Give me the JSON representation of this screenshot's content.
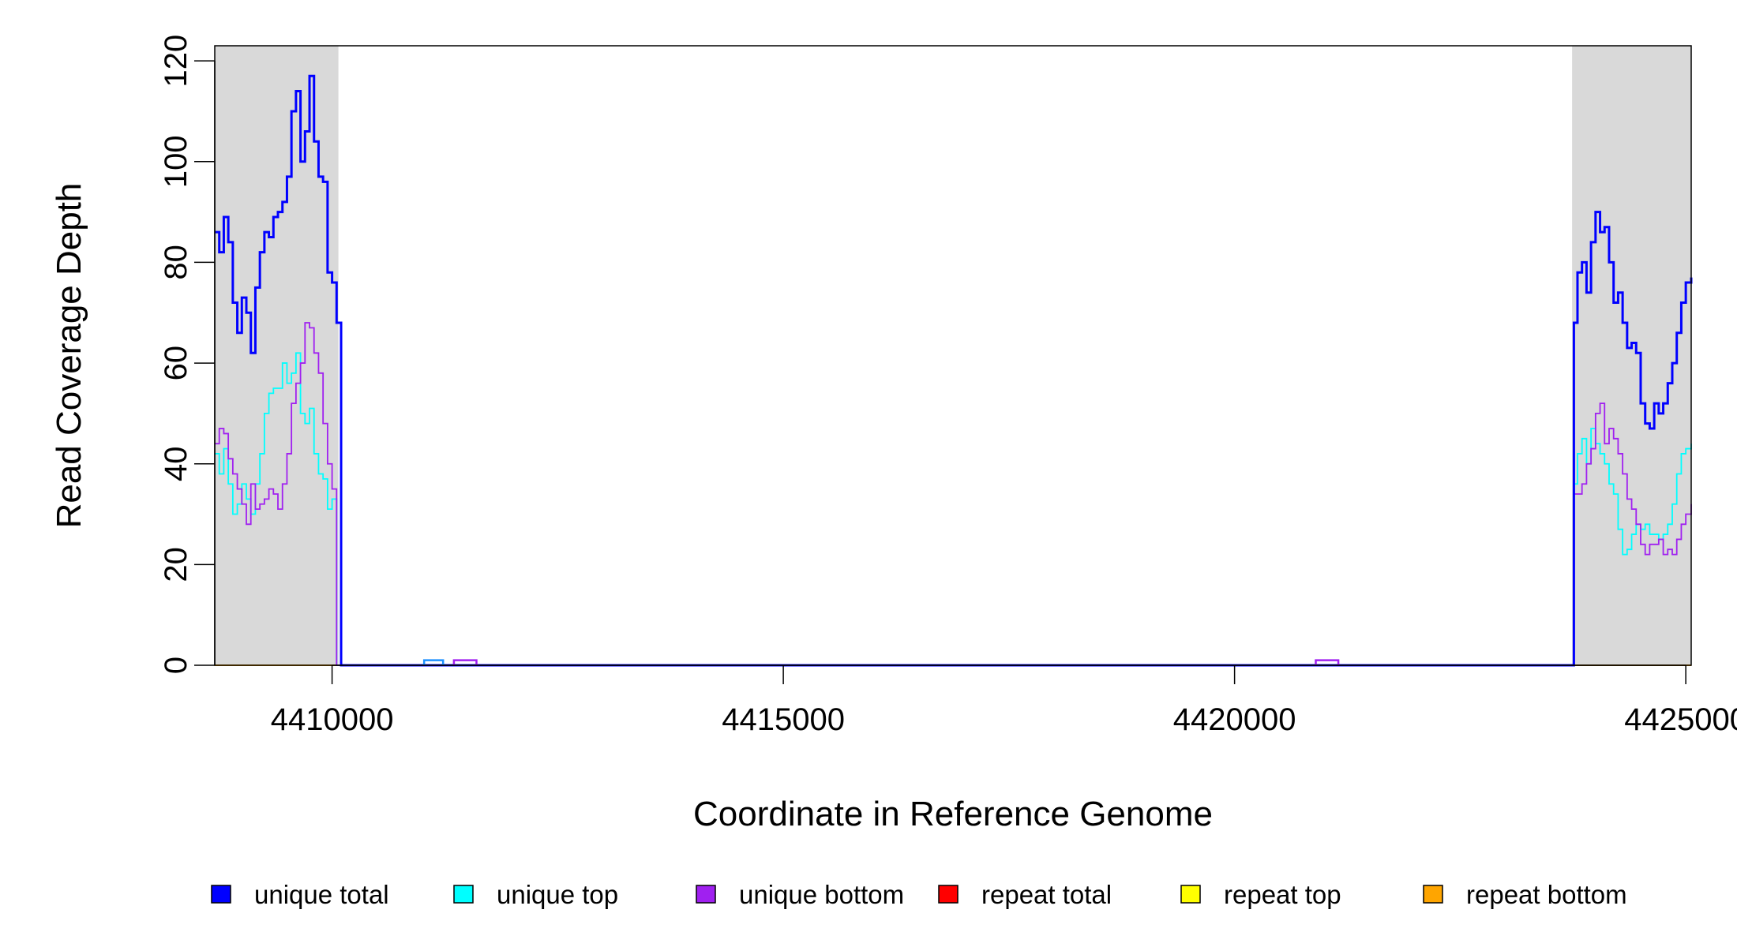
{
  "chart_data": {
    "type": "line",
    "xlabel": "Coordinate in Reference Genome",
    "ylabel": "Read Coverage Depth",
    "xlim": [
      4408700,
      4425060
    ],
    "ylim": [
      0,
      123
    ],
    "x_ticks": [
      4410000,
      4415000,
      4420000,
      4425000
    ],
    "x_tick_labels": [
      "4410000",
      "4415000",
      "4420000",
      "4425000"
    ],
    "y_ticks": [
      0,
      20,
      40,
      60,
      80,
      100,
      120
    ],
    "y_tick_labels": [
      "0",
      "20",
      "40",
      "60",
      "80",
      "100",
      "120"
    ],
    "grid": false,
    "legend_position": "bottom",
    "shaded_regions": [
      [
        4408700,
        4410070
      ],
      [
        4423740,
        4425060
      ]
    ],
    "shade_color": "#d9d9d9",
    "series": [
      {
        "name": "unique total",
        "color": "#0000ff",
        "step": true,
        "x": [
          4408700,
          4408750,
          4408800,
          4408850,
          4408900,
          4408950,
          4409000,
          4409050,
          4409100,
          4409150,
          4409200,
          4409250,
          4409300,
          4409350,
          4409400,
          4409450,
          4409500,
          4409550,
          4409600,
          4409650,
          4409700,
          4409750,
          4409800,
          4409850,
          4409900,
          4409950,
          4410000,
          4410050,
          4410100,
          4410120,
          4423740,
          4423760,
          4423800,
          4423850,
          4423900,
          4423950,
          4424000,
          4424050,
          4424100,
          4424150,
          4424200,
          4424250,
          4424300,
          4424350,
          4424400,
          4424450,
          4424500,
          4424550,
          4424600,
          4424650,
          4424700,
          4424750,
          4424800,
          4424850,
          4424900,
          4424950,
          4425000,
          4425060
        ],
        "y": [
          86,
          82,
          89,
          84,
          72,
          66,
          73,
          70,
          62,
          75,
          82,
          86,
          85,
          89,
          90,
          92,
          97,
          110,
          114,
          100,
          106,
          117,
          104,
          97,
          96,
          78,
          76,
          68,
          0,
          0,
          0,
          68,
          78,
          80,
          74,
          84,
          90,
          86,
          87,
          80,
          72,
          74,
          68,
          63,
          64,
          62,
          52,
          48,
          47,
          52,
          50,
          52,
          56,
          60,
          66,
          72,
          76,
          77
        ]
      },
      {
        "name": "unique top",
        "color": "#00ffff",
        "step": true,
        "x": [
          4408700,
          4408750,
          4408800,
          4408850,
          4408900,
          4408950,
          4409000,
          4409050,
          4409100,
          4409150,
          4409200,
          4409250,
          4409300,
          4409350,
          4409400,
          4409450,
          4409500,
          4409550,
          4409600,
          4409650,
          4409700,
          4409750,
          4409800,
          4409850,
          4409900,
          4409950,
          4410000,
          4410050,
          4410100,
          4410120,
          4423740,
          4423760,
          4423800,
          4423850,
          4423900,
          4423950,
          4424000,
          4424050,
          4424100,
          4424150,
          4424200,
          4424250,
          4424300,
          4424350,
          4424400,
          4424450,
          4424500,
          4424550,
          4424600,
          4424650,
          4424700,
          4424750,
          4424800,
          4424850,
          4424900,
          4424950,
          4425000,
          4425060
        ],
        "y": [
          42,
          38,
          43,
          36,
          30,
          32,
          36,
          33,
          30,
          36,
          42,
          50,
          54,
          55,
          55,
          60,
          56,
          58,
          62,
          50,
          48,
          51,
          42,
          38,
          37,
          31,
          33,
          0,
          0,
          0,
          0,
          36,
          42,
          45,
          40,
          47,
          44,
          42,
          40,
          36,
          34,
          27,
          22,
          23,
          26,
          28,
          27,
          28,
          26,
          26,
          25,
          26,
          28,
          32,
          38,
          42,
          43,
          44
        ]
      },
      {
        "name": "unique bottom",
        "color": "#a020f0",
        "step": true,
        "x": [
          4408700,
          4408750,
          4408800,
          4408850,
          4408900,
          4408950,
          4409000,
          4409050,
          4409100,
          4409150,
          4409200,
          4409250,
          4409300,
          4409350,
          4409400,
          4409450,
          4409500,
          4409550,
          4409600,
          4409650,
          4409700,
          4409750,
          4409800,
          4409850,
          4409900,
          4409950,
          4410000,
          4410050,
          4410100,
          4410120,
          4423740,
          4423760,
          4423800,
          4423850,
          4423900,
          4423950,
          4424000,
          4424050,
          4424100,
          4424150,
          4424200,
          4424250,
          4424300,
          4424350,
          4424400,
          4424450,
          4424500,
          4424550,
          4424600,
          4424650,
          4424700,
          4424750,
          4424800,
          4424850,
          4424900,
          4424950,
          4425000,
          4425060
        ],
        "y": [
          44,
          47,
          46,
          41,
          38,
          35,
          32,
          28,
          36,
          31,
          32,
          33,
          35,
          34,
          31,
          36,
          42,
          52,
          56,
          60,
          68,
          67,
          62,
          58,
          48,
          40,
          35,
          0,
          0,
          0,
          0,
          34,
          34,
          36,
          40,
          43,
          50,
          52,
          44,
          47,
          45,
          42,
          38,
          33,
          31,
          28,
          24,
          22,
          24,
          24,
          25,
          22,
          23,
          22,
          25,
          28,
          30,
          32
        ]
      },
      {
        "name": "repeat total",
        "color": "#ff0000",
        "step": true,
        "x": [
          4408700,
          4425060
        ],
        "y": [
          0,
          0
        ]
      },
      {
        "name": "repeat top",
        "color": "#ffff00",
        "step": true,
        "x": [
          4408700,
          4425060
        ],
        "y": [
          0,
          0
        ]
      },
      {
        "name": "repeat bottom",
        "color": "#ffa500",
        "step": true,
        "x": [
          4408700,
          4425060
        ],
        "y": [
          0,
          0
        ]
      }
    ],
    "small_bumps": [
      {
        "color": "#1e90ff",
        "x": [
          4411020,
          4411230
        ],
        "y": 1
      },
      {
        "color": "#a020f0",
        "x": [
          4411350,
          4411600
        ],
        "y": 1
      },
      {
        "color": "#a020f0",
        "x": [
          4420900,
          4421150
        ],
        "y": 1
      }
    ]
  }
}
